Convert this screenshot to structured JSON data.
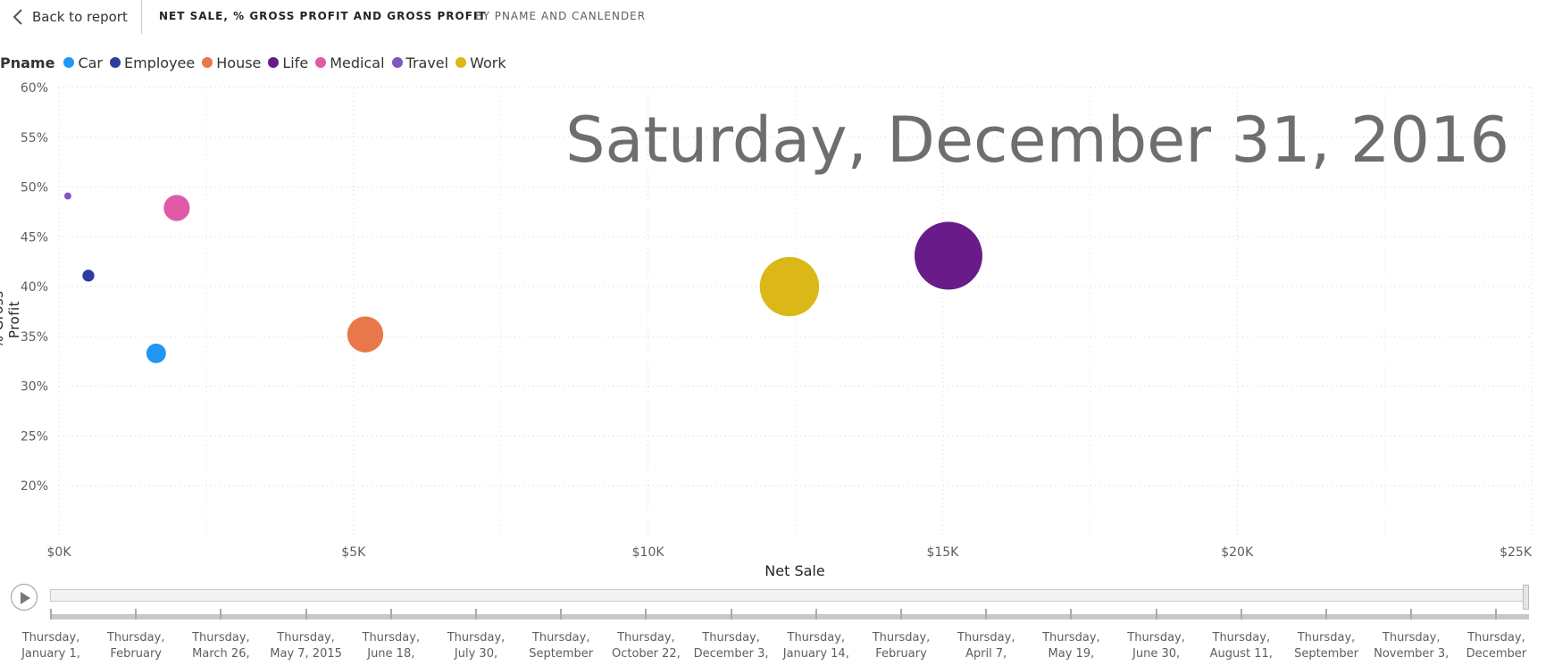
{
  "header": {
    "back_label": "Back to report",
    "title": "NET SALE, % GROSS PROFIT AND GROSS PROFIT",
    "subtitle": "BY PNAME AND CANLENDER"
  },
  "legend": {
    "title": "Pname",
    "items": [
      {
        "label": "Car",
        "color": "#2196f3"
      },
      {
        "label": "Employee",
        "color": "#2b3ea0"
      },
      {
        "label": "House",
        "color": "#e8784a"
      },
      {
        "label": "Life",
        "color": "#6a1b8a"
      },
      {
        "label": "Medical",
        "color": "#e05aa8"
      },
      {
        "label": "Travel",
        "color": "#7e57c2"
      },
      {
        "label": "Work",
        "color": "#dbb718"
      }
    ]
  },
  "play_axis": {
    "current_date": "Saturday, December 31, 2016",
    "labels": [
      [
        "Thursday,",
        "January 1,"
      ],
      [
        "Thursday,",
        "February"
      ],
      [
        "Thursday,",
        "March 26,"
      ],
      [
        "Thursday,",
        "May 7, 2015"
      ],
      [
        "Thursday,",
        "June 18,"
      ],
      [
        "Thursday,",
        "July 30,"
      ],
      [
        "Thursday,",
        "September"
      ],
      [
        "Thursday,",
        "October 22,"
      ],
      [
        "Thursday,",
        "December 3,"
      ],
      [
        "Thursday,",
        "January 14,"
      ],
      [
        "Thursday,",
        "February"
      ],
      [
        "Thursday,",
        "April 7,"
      ],
      [
        "Thursday,",
        "May 19,"
      ],
      [
        "Thursday,",
        "June 30,"
      ],
      [
        "Thursday,",
        "August 11,"
      ],
      [
        "Thursday,",
        "September"
      ],
      [
        "Thursday,",
        "November 3,"
      ],
      [
        "Thursday,",
        "December"
      ]
    ],
    "progress": 1.0
  },
  "chart_data": {
    "type": "scatter",
    "xlabel": "Net Sale",
    "ylabel": "% Gross Profit",
    "xlim": [
      0,
      25000
    ],
    "ylim": [
      15,
      60
    ],
    "x_ticks": [
      "$0K",
      "$5K",
      "$10K",
      "$15K",
      "$20K",
      "$25K"
    ],
    "x_tick_values": [
      0,
      5000,
      10000,
      15000,
      20000,
      25000
    ],
    "y_ticks": [
      "20%",
      "25%",
      "30%",
      "35%",
      "40%",
      "45%",
      "50%",
      "55%",
      "60%"
    ],
    "y_tick_values": [
      20,
      25,
      30,
      35,
      40,
      45,
      50,
      55,
      60
    ],
    "grid": true,
    "size_by": "Gross Profit",
    "series": [
      {
        "name": "Car",
        "x": 1650,
        "y": 33.3,
        "size": 540,
        "color": "#2196f3"
      },
      {
        "name": "Employee",
        "x": 500,
        "y": 41.1,
        "size": 200,
        "color": "#2b3ea0"
      },
      {
        "name": "House",
        "x": 5200,
        "y": 35.2,
        "size": 1830,
        "color": "#e8784a"
      },
      {
        "name": "Life",
        "x": 15100,
        "y": 43.1,
        "size": 6500,
        "color": "#6a1b8a"
      },
      {
        "name": "Medical",
        "x": 2000,
        "y": 47.9,
        "size": 960,
        "color": "#e05aa8"
      },
      {
        "name": "Travel",
        "x": 150,
        "y": 49.1,
        "size": 70,
        "color": "#7e57c2"
      },
      {
        "name": "Work",
        "x": 12400,
        "y": 40.0,
        "size": 4960,
        "color": "#dbb718"
      }
    ]
  }
}
